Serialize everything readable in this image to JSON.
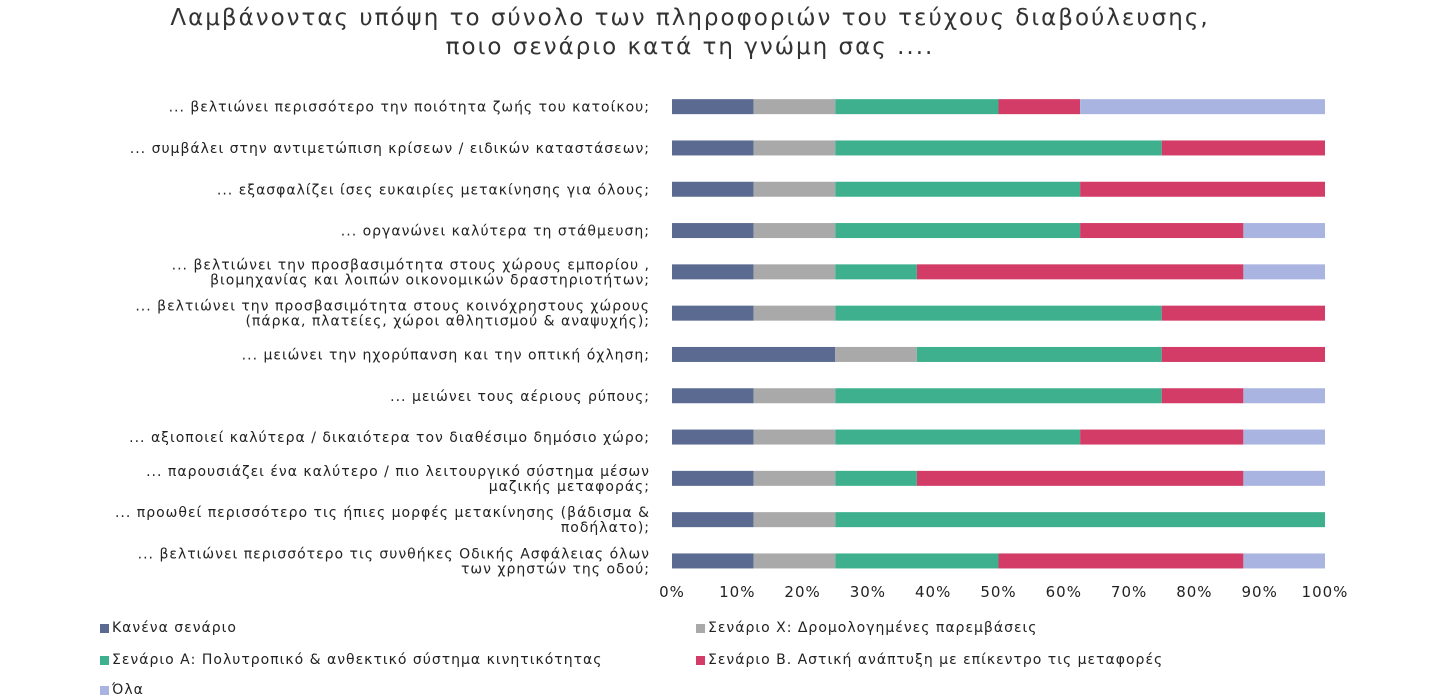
{
  "chart_data": {
    "type": "bar",
    "orientation": "horizontal",
    "stacked": "percent",
    "title": [
      "Λαμβάνοντας υπόψη το σύνολο των πληροφοριών του τεύχους διαβούλευσης,",
      "ποιο σενάριο κατά τη γνώμη σας ...."
    ],
    "categories": [
      [
        "... βελτιώνει περισσότερο την ποιότητα ζωής του κατοίκου;"
      ],
      [
        "... συμβάλει στην αντιμετώπιση κρίσεων / ειδικών καταστάσεων;"
      ],
      [
        "... εξασφαλίζει ίσες ευκαιρίες μετακίνησης για όλους;"
      ],
      [
        "... οργανώνει καλύτερα τη στάθμευση;"
      ],
      [
        "... βελτιώνει την προσβασιμότητα στους χώρους εμπορίου ,",
        "βιομηχανίας και λοιπών οικονομικών δραστηριοτήτων;"
      ],
      [
        "... βελτιώνει την προσβασιμότητα στους κοινόχρηστους χώρους",
        "(πάρκα, πλατείες, χώροι αθλητισμού & αναψυχής);"
      ],
      [
        "... μειώνει την ηχορύπανση και την οπτική όχληση;"
      ],
      [
        "... μειώνει τους αέριους ρύπους;"
      ],
      [
        "... αξιοποιεί καλύτερα / δικαιότερα τον διαθέσιμο δημόσιο χώρο;"
      ],
      [
        "... παρουσιάζει ένα καλύτερο / πιο λειτουργικό σύστημα μέσων",
        "μαζικής μεταφοράς;"
      ],
      [
        "... προωθεί περισσότερο τις ήπιες μορφές μετακίνησης (βάδισμα &",
        "ποδήλατο);"
      ],
      [
        "... βελτιώνει περισσότερο τις συνθήκες Οδικής Ασφάλειας όλων",
        "των χρηστών της οδού;"
      ]
    ],
    "series": [
      {
        "name": "Κανένα σενάριο",
        "color": "#5b6a91",
        "values": [
          12.5,
          12.5,
          12.5,
          12.5,
          12.5,
          12.5,
          25,
          12.5,
          12.5,
          12.5,
          12.5,
          12.5
        ]
      },
      {
        "name": "Σενάριο Χ: Δρομολογημένες παρεμβάσεις",
        "color": "#a9a9a9",
        "values": [
          12.5,
          12.5,
          12.5,
          12.5,
          12.5,
          12.5,
          12.5,
          12.5,
          12.5,
          12.5,
          12.5,
          12.5
        ]
      },
      {
        "name": "Σενάριο Α: Πολυτροπικό & ανθεκτικό σύστημα κινητικότητας",
        "color": "#3fb08d",
        "values": [
          25,
          50,
          37.5,
          37.5,
          12.5,
          50,
          37.5,
          50,
          37.5,
          12.5,
          75,
          25
        ]
      },
      {
        "name": "Σενάριο Β. Αστική ανάπτυξη με επίκεντρο τις μεταφορές",
        "color": "#d23c66",
        "values": [
          12.5,
          25,
          37.5,
          25,
          50,
          25,
          25,
          12.5,
          25,
          50,
          0,
          37.5
        ]
      },
      {
        "name": "Όλα",
        "color": "#aab4e0",
        "values": [
          37.5,
          0,
          0,
          12.5,
          12.5,
          0,
          0,
          12.5,
          12.5,
          12.5,
          0,
          12.5
        ]
      }
    ],
    "xlim": [
      0,
      100
    ],
    "xticks": [
      "0%",
      "10%",
      "20%",
      "30%",
      "40%",
      "50%",
      "60%",
      "70%",
      "80%",
      "90%",
      "100%"
    ],
    "grid": false,
    "legend_position": "bottom"
  }
}
